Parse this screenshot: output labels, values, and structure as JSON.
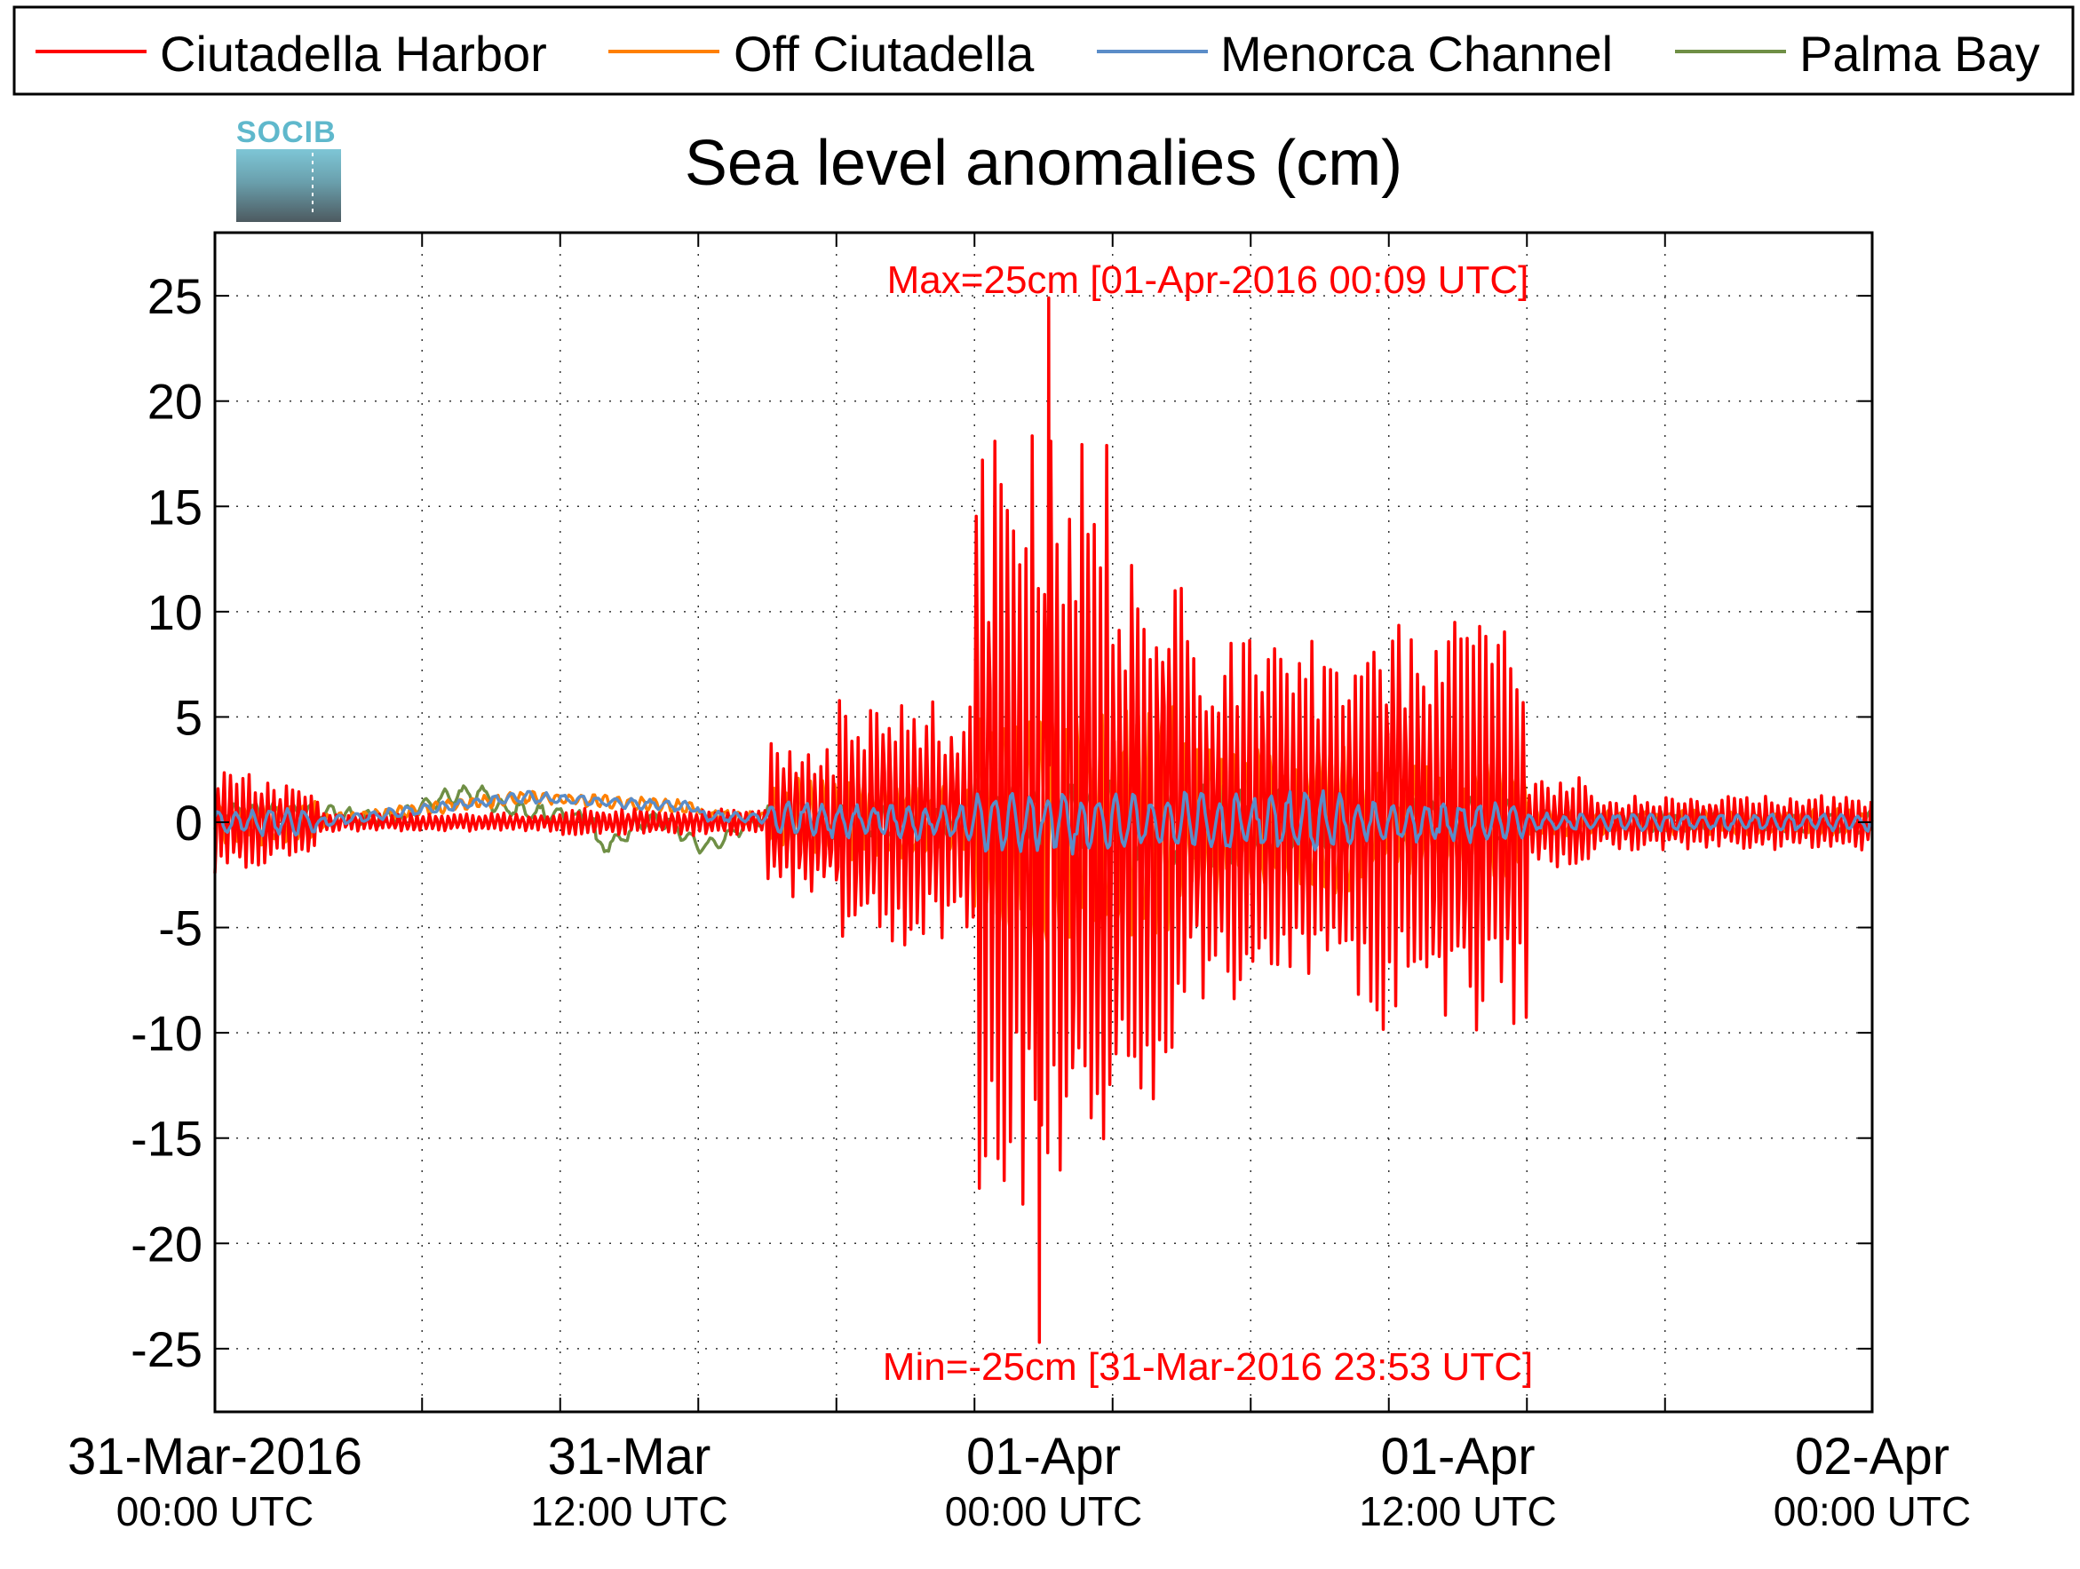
{
  "chart_data": {
    "type": "line",
    "title": "Sea level anomalies (cm)",
    "logo_text": "SOCIB",
    "ylabel": "",
    "xlabel": "",
    "ylim": [
      -28,
      28
    ],
    "xlim_hours": [
      -6,
      42
    ],
    "y_ticks": [
      "25",
      "20",
      "15",
      "10",
      "5",
      "0",
      "-5",
      "-10",
      "-15",
      "-20",
      "-25"
    ],
    "y_tick_values": [
      25,
      20,
      15,
      10,
      5,
      0,
      -5,
      -10,
      -15,
      -20,
      -25
    ],
    "x_tick_labels": [
      {
        "date": "31-Mar-2016",
        "time": "00:00 UTC"
      },
      {
        "date": "31-Mar",
        "time": "12:00 UTC"
      },
      {
        "date": "01-Apr",
        "time": "00:00 UTC"
      },
      {
        "date": "01-Apr",
        "time": "12:00 UTC"
      },
      {
        "date": "02-Apr",
        "time": "00:00 UTC"
      }
    ],
    "grid": true,
    "legend_position": "top",
    "annotations": {
      "max": "Max=25cm [01-Apr-2016 00:09 UTC]",
      "min": "Min=-25cm [31-Mar-2016 23:53 UTC]"
    },
    "series": [
      {
        "name": "Ciutadella Harbor",
        "color": "#ff0000",
        "x": [
          "31-Mar-2016 00:00",
          "31-Mar-2016 06:00",
          "31-Mar-2016 12:00",
          "31-Mar-2016 18:00",
          "31-Mar-2016 23:53",
          "01-Apr-2016 00:09",
          "01-Apr-2016 06:00",
          "01-Apr-2016 12:00",
          "01-Apr-2016 18:00",
          "02-Apr-2016 00:00"
        ],
        "values": [
          -3,
          1.5,
          1,
          5,
          -25,
          25,
          12,
          12.5,
          2,
          1.5
        ]
      },
      {
        "name": "Off Ciutadella",
        "color": "#ff8000",
        "x": [
          "31-Mar-2016 00:00",
          "31-Mar-2016 12:00",
          "31-Mar-2016 19:30",
          "31-Mar-2016 22:00",
          "01-Apr-2016 06:00",
          "01-Apr-2016 18:00",
          "02-Apr-2016 00:00"
        ],
        "values": [
          0.5,
          1,
          2,
          8,
          -6,
          0.5,
          0.5
        ]
      },
      {
        "name": "Menorca Channel",
        "color": "#5b8dc8",
        "x": [
          "31-Mar-2016 00:00",
          "31-Mar-2016 06:00",
          "31-Mar-2016 12:00",
          "01-Apr-2016 00:00",
          "01-Apr-2016 12:00",
          "02-Apr-2016 00:00"
        ],
        "values": [
          0.3,
          1.5,
          0.8,
          2,
          1,
          0.3
        ]
      },
      {
        "name": "Palma Bay",
        "color": "#6f8f45",
        "x": [
          "31-Mar-2016 00:00",
          "31-Mar-2016 03:00",
          "31-Mar-2016 09:00",
          "31-Mar-2016 15:00",
          "01-Apr-2016 00:00",
          "01-Apr-2016 12:00",
          "02-Apr-2016 00:00"
        ],
        "values": [
          0.5,
          1.5,
          0.5,
          -1.5,
          2.5,
          2.5,
          0.5
        ]
      }
    ]
  }
}
